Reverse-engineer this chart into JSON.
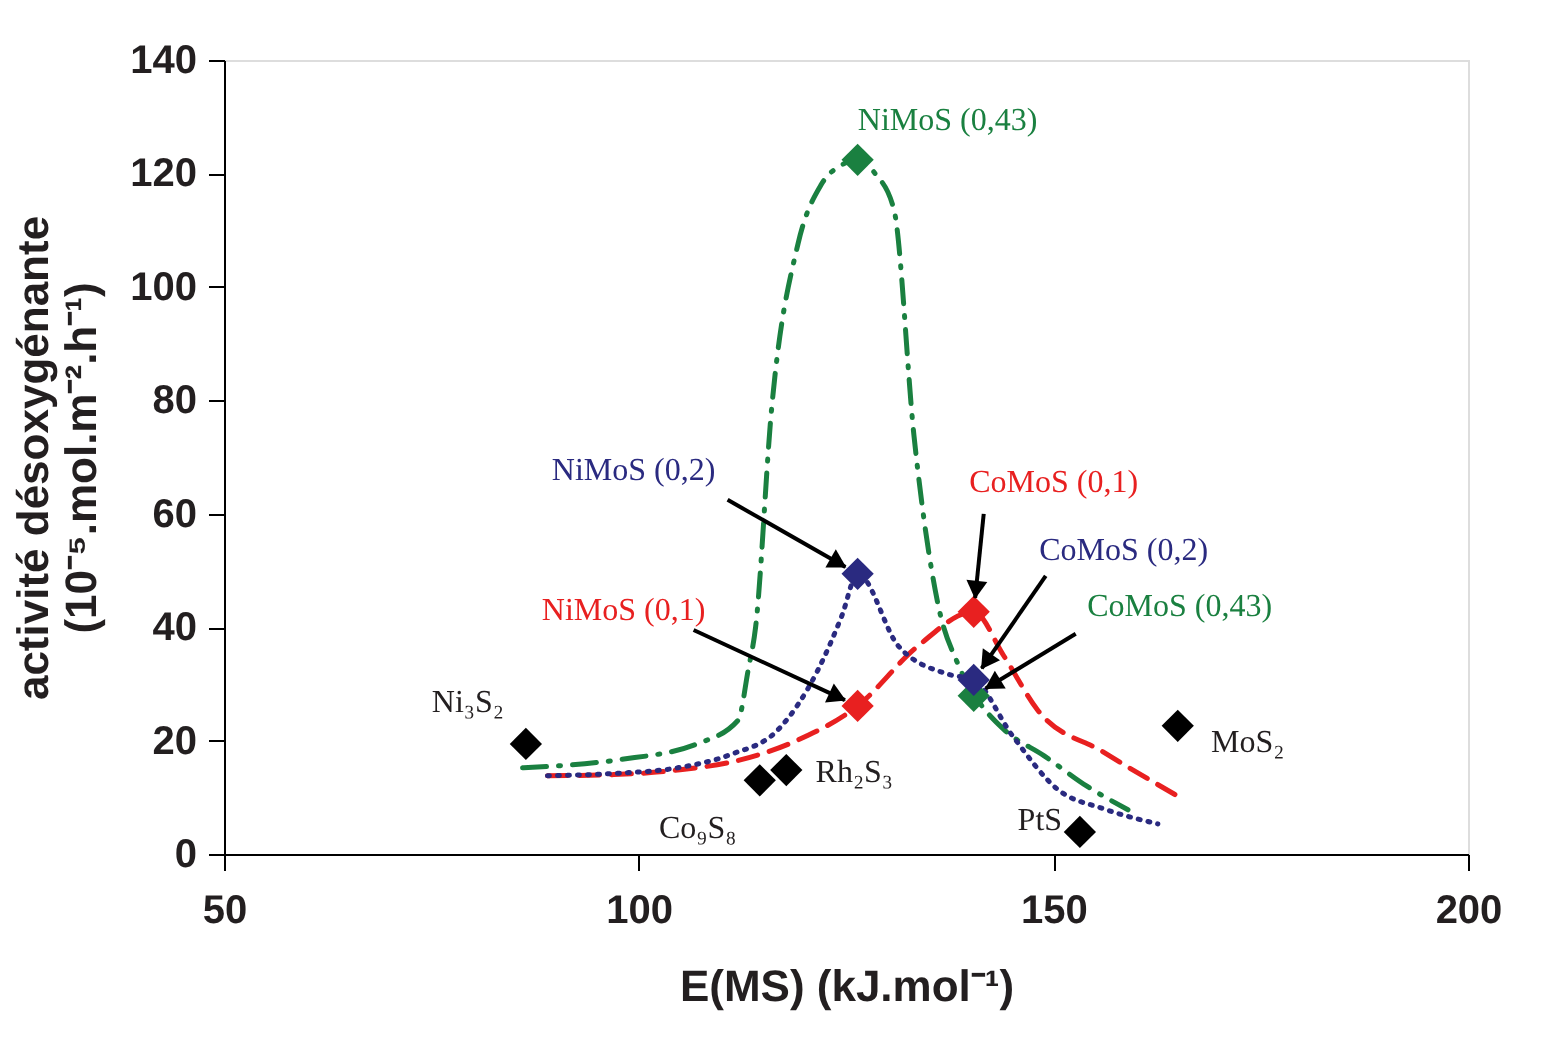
{
  "chart_data": {
    "type": "line",
    "xlabel": "E(MS) (kJ.mol⁻¹)",
    "ylabel": "activité désoxygénante\n(10⁻⁵.mol.m⁻².h⁻¹)",
    "xlim": [
      50,
      200
    ],
    "xticks": [
      50,
      100,
      150,
      200
    ],
    "ylim": [
      0,
      140
    ],
    "yticks": [
      0,
      20,
      40,
      60,
      80,
      100,
      120,
      140
    ],
    "grid": false,
    "series": [
      {
        "line_style": "dashdot",
        "color": "#1a8040",
        "x": [
          86,
          97.5,
          107,
          112,
          113.2,
          114.1,
          116,
          119.2,
          122,
          124.5,
          126.4,
          128.5,
          130.8,
          133.2,
          136.1,
          138.5,
          140.5,
          144,
          148.9,
          154,
          159
        ],
        "values": [
          15.2,
          16.6,
          19.4,
          23.6,
          32.4,
          40,
          78,
          107.5,
          118,
          121.5,
          122.4,
          120,
          113.5,
          73.7,
          44,
          33.5,
          28,
          22,
          17.3,
          12,
          7.8
        ]
      },
      {
        "line_style": "dashed",
        "color": "#e82020",
        "x": [
          89,
          97,
          104.7,
          112,
          119.2,
          126.4,
          133.7,
          140.4,
          144,
          148.1,
          156,
          165
        ],
        "values": [
          13.8,
          14,
          14.8,
          16.5,
          20.1,
          26.1,
          36.7,
          42.7,
          35,
          25.4,
          18,
          10.2
        ]
      },
      {
        "line_style": "dotted",
        "color": "#2a2a80",
        "x": [
          89,
          97,
          104.7,
          111,
          116.8,
          121.6,
          124.5,
          126.4,
          131.3,
          137.3,
          140.4,
          145,
          150.6,
          156,
          162.6
        ],
        "values": [
          13.8,
          14.2,
          15.2,
          17.5,
          21.9,
          32.4,
          42,
          49.4,
          36.7,
          31.7,
          30.7,
          21,
          11.3,
          8,
          5.3
        ]
      },
      {
        "type": "scatter",
        "marker": "diamond",
        "color": "#1a8040",
        "x": [
          126.4,
          140.4
        ],
        "values": [
          122.4,
          27.9
        ]
      },
      {
        "type": "scatter",
        "marker": "diamond",
        "color": "#2a2a80",
        "x": [
          126.4,
          140.4
        ],
        "values": [
          49.4,
          30.7
        ]
      },
      {
        "type": "scatter",
        "marker": "diamond",
        "color": "#e82020",
        "x": [
          126.4,
          140.4
        ],
        "values": [
          26.1,
          42.7
        ]
      },
      {
        "type": "scatter",
        "marker": "diamond",
        "color": "#000000",
        "x": [
          86.4,
          114.6,
          117.8,
          153.2,
          165
        ],
        "values": [
          19.4,
          13.0,
          14.8,
          3.9,
          22.6
        ]
      }
    ],
    "annotations": [
      {
        "text": "NiMoS (0,43)",
        "x": 126.4,
        "y": 122.4
      },
      {
        "text": "NiMoS (0,2)",
        "x": 126.4,
        "y": 49.4
      },
      {
        "text": "NiMoS (0,1)",
        "x": 126.4,
        "y": 26.1
      },
      {
        "text": "CoMoS (0,1)",
        "x": 140.4,
        "y": 42.7
      },
      {
        "text": "CoMoS (0,2)",
        "x": 140.4,
        "y": 30.7
      },
      {
        "text": "CoMoS (0,43)",
        "x": 140.4,
        "y": 27.9
      },
      {
        "text": "Ni₃S₂",
        "x": 86.4,
        "y": 19.4
      },
      {
        "text": "Co₉S₈",
        "x": 114.6,
        "y": 13.0
      },
      {
        "text": "Rh₂S₃",
        "x": 117.8,
        "y": 14.8
      },
      {
        "text": "PtS",
        "x": 153.2,
        "y": 3.9
      },
      {
        "text": "MoS₂",
        "x": 165,
        "y": 22.6
      }
    ]
  }
}
